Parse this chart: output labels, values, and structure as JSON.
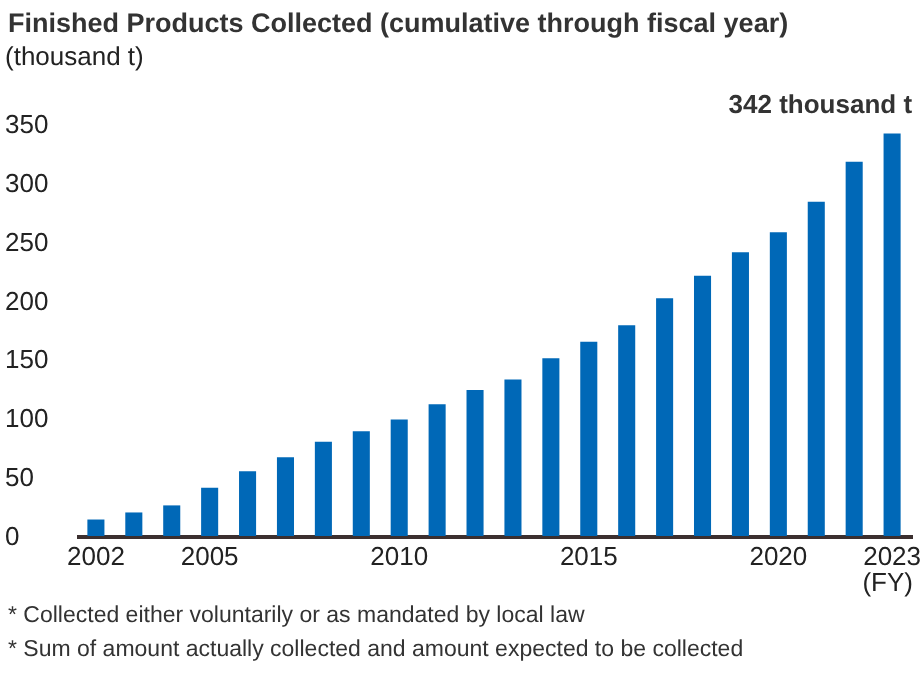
{
  "chart_data": {
    "type": "bar",
    "title": "Finished Products Collected (cumulative through fiscal year)",
    "ylabel": "(thousand t)",
    "xlabel": "(FY)",
    "categories": [
      "2002",
      null,
      null,
      "2005",
      null,
      null,
      null,
      null,
      "2010",
      null,
      null,
      null,
      null,
      "2015",
      null,
      null,
      null,
      null,
      "2020",
      null,
      null,
      "2023"
    ],
    "values": [
      14,
      20,
      26,
      41,
      55,
      67,
      80,
      89,
      99,
      112,
      124,
      133,
      151,
      165,
      179,
      202,
      221,
      241,
      258,
      284,
      318,
      342
    ],
    "color": "#0068b7",
    "ylim": [
      0,
      350
    ],
    "yticks": [
      0,
      50,
      100,
      150,
      200,
      250,
      300,
      350
    ],
    "grid": false,
    "annotations": [
      {
        "text": "342 thousand t",
        "x": "2023",
        "y": 342
      },
      "* Collected either voluntarily or as mandated by local law",
      "* Sum of amount actually collected and amount expected to be collected"
    ]
  }
}
